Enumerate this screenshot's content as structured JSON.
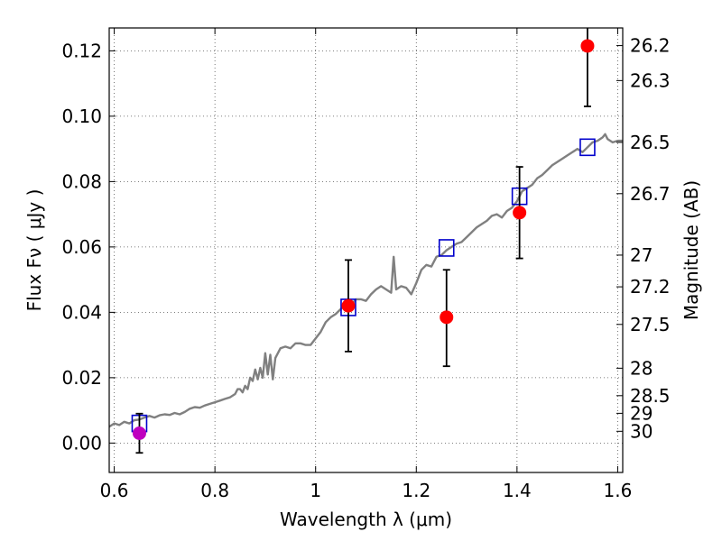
{
  "chart_data": {
    "type": "scatter",
    "xlabel": "Wavelength  λ (μm)",
    "ylabel": "Flux  Fν ( μJy )",
    "y2label": "Magnitude (AB)",
    "xlim": [
      0.59,
      1.61
    ],
    "ylim": [
      -0.009,
      0.127
    ],
    "grid": true,
    "x_ticks": [
      {
        "value": 0.6,
        "label": "0.6"
      },
      {
        "value": 0.8,
        "label": "0.8"
      },
      {
        "value": 1.0,
        "label": "1"
      },
      {
        "value": 1.2,
        "label": "1.2"
      },
      {
        "value": 1.4,
        "label": "1.4"
      },
      {
        "value": 1.6,
        "label": "1.6"
      }
    ],
    "y_ticks": [
      {
        "value": 0.0,
        "label": "0.00"
      },
      {
        "value": 0.02,
        "label": "0.02"
      },
      {
        "value": 0.04,
        "label": "0.04"
      },
      {
        "value": 0.06,
        "label": "0.06"
      },
      {
        "value": 0.08,
        "label": "0.08"
      },
      {
        "value": 0.1,
        "label": "0.10"
      },
      {
        "value": 0.12,
        "label": "0.12"
      }
    ],
    "magnitude_ticks": [
      {
        "flux": 0.1216,
        "label": "26.2"
      },
      {
        "flux": 0.1109,
        "label": "26.3"
      },
      {
        "flux": 0.092,
        "label": "26.5"
      },
      {
        "flux": 0.0763,
        "label": "26.7"
      },
      {
        "flux": 0.0575,
        "label": "27"
      },
      {
        "flux": 0.0478,
        "label": "27.2"
      },
      {
        "flux": 0.0363,
        "label": "27.5"
      },
      {
        "flux": 0.0229,
        "label": "28"
      },
      {
        "flux": 0.0145,
        "label": "28.5"
      },
      {
        "flux": 0.0091,
        "label": "29"
      },
      {
        "flux": 0.0036,
        "label": "30"
      }
    ],
    "series": [
      {
        "kind": "line",
        "color": "#808080",
        "points": [
          [
            0.59,
            0.005
          ],
          [
            0.6,
            0.006
          ],
          [
            0.61,
            0.0055
          ],
          [
            0.62,
            0.0065
          ],
          [
            0.63,
            0.006
          ],
          [
            0.64,
            0.007
          ],
          [
            0.65,
            0.0072
          ],
          [
            0.66,
            0.0078
          ],
          [
            0.67,
            0.0083
          ],
          [
            0.68,
            0.0078
          ],
          [
            0.69,
            0.0085
          ],
          [
            0.7,
            0.0088
          ],
          [
            0.71,
            0.0086
          ],
          [
            0.72,
            0.0092
          ],
          [
            0.73,
            0.0088
          ],
          [
            0.74,
            0.0095
          ],
          [
            0.75,
            0.0105
          ],
          [
            0.76,
            0.011
          ],
          [
            0.77,
            0.0108
          ],
          [
            0.78,
            0.0115
          ],
          [
            0.79,
            0.012
          ],
          [
            0.8,
            0.0125
          ],
          [
            0.81,
            0.013
          ],
          [
            0.82,
            0.0135
          ],
          [
            0.83,
            0.014
          ],
          [
            0.84,
            0.015
          ],
          [
            0.845,
            0.0165
          ],
          [
            0.85,
            0.0165
          ],
          [
            0.855,
            0.0155
          ],
          [
            0.86,
            0.0175
          ],
          [
            0.865,
            0.0165
          ],
          [
            0.87,
            0.02
          ],
          [
            0.875,
            0.019
          ],
          [
            0.88,
            0.0225
          ],
          [
            0.885,
            0.0195
          ],
          [
            0.89,
            0.023
          ],
          [
            0.895,
            0.02
          ],
          [
            0.9,
            0.0275
          ],
          [
            0.905,
            0.021
          ],
          [
            0.91,
            0.027
          ],
          [
            0.915,
            0.0195
          ],
          [
            0.92,
            0.026
          ],
          [
            0.93,
            0.029
          ],
          [
            0.94,
            0.0295
          ],
          [
            0.95,
            0.029
          ],
          [
            0.96,
            0.0305
          ],
          [
            0.97,
            0.0305
          ],
          [
            0.98,
            0.03
          ],
          [
            0.99,
            0.03
          ],
          [
            1.0,
            0.032
          ],
          [
            1.01,
            0.034
          ],
          [
            1.02,
            0.037
          ],
          [
            1.03,
            0.0385
          ],
          [
            1.04,
            0.0395
          ],
          [
            1.05,
            0.041
          ],
          [
            1.06,
            0.043
          ],
          [
            1.07,
            0.042
          ],
          [
            1.08,
            0.044
          ],
          [
            1.09,
            0.044
          ],
          [
            1.1,
            0.0435
          ],
          [
            1.11,
            0.0455
          ],
          [
            1.12,
            0.047
          ],
          [
            1.13,
            0.048
          ],
          [
            1.14,
            0.047
          ],
          [
            1.15,
            0.046
          ],
          [
            1.155,
            0.057
          ],
          [
            1.16,
            0.047
          ],
          [
            1.17,
            0.048
          ],
          [
            1.18,
            0.0475
          ],
          [
            1.19,
            0.0455
          ],
          [
            1.2,
            0.049
          ],
          [
            1.21,
            0.053
          ],
          [
            1.22,
            0.0545
          ],
          [
            1.23,
            0.054
          ],
          [
            1.24,
            0.057
          ],
          [
            1.25,
            0.0575
          ],
          [
            1.26,
            0.059
          ],
          [
            1.27,
            0.06
          ],
          [
            1.28,
            0.061
          ],
          [
            1.29,
            0.0615
          ],
          [
            1.3,
            0.063
          ],
          [
            1.31,
            0.0645
          ],
          [
            1.32,
            0.066
          ],
          [
            1.33,
            0.067
          ],
          [
            1.34,
            0.068
          ],
          [
            1.35,
            0.0695
          ],
          [
            1.36,
            0.07
          ],
          [
            1.37,
            0.069
          ],
          [
            1.38,
            0.071
          ],
          [
            1.39,
            0.072
          ],
          [
            1.4,
            0.074
          ],
          [
            1.41,
            0.077
          ],
          [
            1.42,
            0.078
          ],
          [
            1.43,
            0.079
          ],
          [
            1.44,
            0.081
          ],
          [
            1.45,
            0.082
          ],
          [
            1.46,
            0.0835
          ],
          [
            1.47,
            0.085
          ],
          [
            1.48,
            0.086
          ],
          [
            1.49,
            0.087
          ],
          [
            1.5,
            0.088
          ],
          [
            1.51,
            0.089
          ],
          [
            1.52,
            0.09
          ],
          [
            1.53,
            0.089
          ],
          [
            1.54,
            0.0905
          ],
          [
            1.55,
            0.092
          ],
          [
            1.56,
            0.0925
          ],
          [
            1.57,
            0.0935
          ],
          [
            1.575,
            0.0945
          ],
          [
            1.58,
            0.093
          ],
          [
            1.59,
            0.092
          ],
          [
            1.6,
            0.0925
          ],
          [
            1.61,
            0.0925
          ]
        ]
      },
      {
        "kind": "square",
        "color": "#0000cc",
        "points": [
          [
            0.65,
            0.006
          ],
          [
            1.065,
            0.0415
          ],
          [
            1.26,
            0.0597
          ],
          [
            1.405,
            0.0755
          ],
          [
            1.54,
            0.0905
          ]
        ]
      },
      {
        "kind": "errorbar",
        "color": "#ff0000",
        "points": [
          {
            "x": 1.065,
            "y": 0.042,
            "lo": 0.028,
            "hi": 0.056
          },
          {
            "x": 1.26,
            "y": 0.0385,
            "lo": 0.0235,
            "hi": 0.053
          },
          {
            "x": 1.405,
            "y": 0.0705,
            "lo": 0.0565,
            "hi": 0.0845
          },
          {
            "x": 1.54,
            "y": 0.1215,
            "lo": 0.103,
            "hi": 0.128
          }
        ]
      },
      {
        "kind": "errorbar",
        "color": "#bf00bf",
        "points": [
          {
            "x": 0.65,
            "y": 0.003,
            "lo": -0.003,
            "hi": 0.009
          }
        ]
      }
    ]
  }
}
